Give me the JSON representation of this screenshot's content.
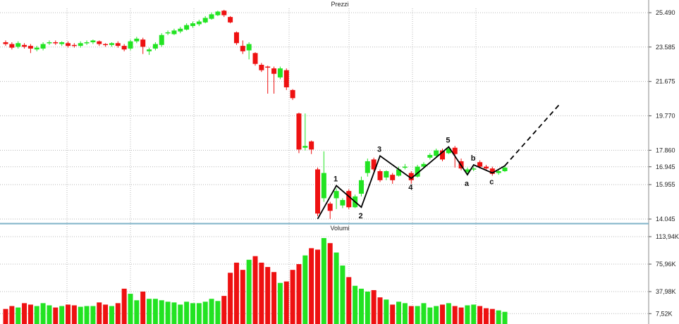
{
  "panels": {
    "price_title": "Prezzi",
    "volume_title": "Volumi"
  },
  "colors": {
    "up": "#22e322",
    "down": "#ee1111",
    "grid": "#b8b8b8",
    "separator": "#7fb3c8",
    "wave": "#000000"
  },
  "chart_data": [
    {
      "type": "candlestick",
      "title": "Prezzi",
      "y_ticks": [
        "25.490",
        "23.585",
        "21.675",
        "19.770",
        "17.860",
        "16.945",
        "15.955",
        "14.045"
      ],
      "y_tick_values": [
        25490,
        23585,
        21675,
        19770,
        17860,
        16945,
        15955,
        14045
      ],
      "ylim": [
        14045,
        25490
      ],
      "candles": [
        [
          23850,
          23750,
          23950,
          23650
        ],
        [
          23750,
          23550,
          23850,
          23450
        ],
        [
          23600,
          23800,
          23900,
          23500
        ],
        [
          23700,
          23600,
          23800,
          23500
        ],
        [
          23650,
          23500,
          23750,
          23250
        ],
        [
          23450,
          23550,
          23650,
          23350
        ],
        [
          23500,
          23750,
          23850,
          23400
        ],
        [
          23800,
          23850,
          23950,
          23700
        ],
        [
          23850,
          23800,
          23950,
          23700
        ],
        [
          23750,
          23850,
          23900,
          23650
        ],
        [
          23800,
          23650,
          23900,
          23550
        ],
        [
          23700,
          23650,
          23800,
          23550
        ],
        [
          23650,
          23800,
          23900,
          23550
        ],
        [
          23800,
          23850,
          23950,
          23700
        ],
        [
          23850,
          23950,
          24000,
          23750
        ],
        [
          23900,
          23750,
          23950,
          23650
        ],
        [
          23750,
          23700,
          23800,
          23600
        ],
        [
          23700,
          23800,
          23850,
          23600
        ],
        [
          23800,
          23650,
          23900,
          23550
        ],
        [
          23650,
          23450,
          23750,
          23350
        ],
        [
          23500,
          23900,
          24000,
          23400
        ],
        [
          23900,
          24050,
          24150,
          23800
        ],
        [
          24000,
          23600,
          24100,
          23200
        ],
        [
          23350,
          23450,
          23550,
          23150
        ],
        [
          23500,
          23750,
          23850,
          23400
        ],
        [
          23700,
          24250,
          24350,
          23600
        ],
        [
          24350,
          24400,
          24500,
          24250
        ],
        [
          24300,
          24500,
          24600,
          24250
        ],
        [
          24450,
          24600,
          24700,
          24350
        ],
        [
          24550,
          24800,
          24900,
          24500
        ],
        [
          24750,
          24900,
          25000,
          24650
        ],
        [
          24850,
          25000,
          25100,
          24750
        ],
        [
          24950,
          25200,
          25300,
          24900
        ],
        [
          25150,
          25400,
          25500,
          25100
        ],
        [
          25350,
          25550,
          25600,
          25300
        ],
        [
          25600,
          25350,
          25650,
          25250
        ],
        [
          25250,
          24950,
          25300,
          24900
        ],
        [
          24400,
          23800,
          24450,
          23700
        ],
        [
          23650,
          23350,
          23950,
          23200
        ],
        [
          23400,
          23750,
          23850,
          22900
        ],
        [
          23250,
          22650,
          23300,
          22550
        ],
        [
          22600,
          22300,
          22700,
          22200
        ],
        [
          22500,
          22450,
          22550,
          21000
        ],
        [
          22400,
          22100,
          22500,
          21000
        ],
        [
          21900,
          22400,
          22500,
          21800
        ],
        [
          22300,
          21350,
          22400,
          21200
        ],
        [
          21200,
          20750,
          21250,
          20650
        ],
        [
          19900,
          17900,
          19950,
          17700
        ],
        [
          18000,
          18100,
          19900,
          17850
        ],
        [
          18350,
          17900,
          18400,
          17650
        ],
        [
          16800,
          14350,
          16900,
          14200
        ],
        [
          15200,
          16600,
          17800,
          15000
        ],
        [
          14900,
          14500,
          15000,
          14050
        ],
        [
          15200,
          15600,
          15750,
          14600
        ],
        [
          14800,
          15100,
          15200,
          14650
        ],
        [
          15600,
          14700,
          15700,
          14600
        ],
        [
          14700,
          15300,
          15400,
          14650
        ],
        [
          15450,
          16200,
          16400,
          15300
        ],
        [
          16600,
          17250,
          17400,
          16400
        ],
        [
          17350,
          16800,
          17450,
          16700
        ],
        [
          16700,
          16200,
          16800,
          16100
        ],
        [
          16350,
          16700,
          16750,
          16200
        ],
        [
          16500,
          16200,
          16600,
          16000
        ],
        [
          16450,
          16800,
          16950,
          16400
        ],
        [
          16900,
          16950,
          17100,
          16800
        ],
        [
          16600,
          16200,
          16700,
          16000
        ],
        [
          16400,
          16950,
          17050,
          16350
        ],
        [
          16950,
          17100,
          17200,
          16850
        ],
        [
          17450,
          17600,
          17700,
          17350
        ],
        [
          17550,
          17850,
          17950,
          17450
        ],
        [
          17850,
          17350,
          17950,
          17250
        ],
        [
          17700,
          17950,
          18050,
          17650
        ],
        [
          18000,
          17650,
          18100,
          16900
        ],
        [
          17250,
          16850,
          17400,
          16750
        ],
        [
          16650,
          16800,
          16900,
          16550
        ],
        [
          16800,
          16850,
          16950,
          16700
        ],
        [
          17200,
          16950,
          17300,
          16850
        ],
        [
          16950,
          16850,
          17050,
          16750
        ],
        [
          16850,
          16550,
          16950,
          16450
        ],
        [
          16600,
          16700,
          16800,
          16500
        ],
        [
          16700,
          16900,
          17000,
          16650
        ]
      ],
      "elliott_waves": {
        "impulse_labels": [
          "1",
          "2",
          "3",
          "4",
          "5"
        ],
        "correction_labels": [
          "a",
          "b",
          "c"
        ],
        "path": [
          [
            50,
            14050
          ],
          [
            53,
            15900
          ],
          [
            57,
            14700
          ],
          [
            60,
            17550
          ],
          [
            65,
            16300
          ],
          [
            71,
            18050
          ],
          [
            74,
            16500
          ],
          [
            75,
            17050
          ],
          [
            78,
            16600
          ],
          [
            80,
            17000
          ]
        ],
        "projection": [
          [
            80,
            17000
          ],
          [
            89,
            20500
          ]
        ]
      }
    },
    {
      "type": "bar",
      "title": "Volumi",
      "y_ticks": [
        "113,94K",
        "75,96K",
        "37,98K",
        "7,52K"
      ],
      "y_tick_values": [
        113940,
        75960,
        37980,
        7520
      ],
      "ylim": [
        0,
        113940
      ],
      "values": [
        14000,
        18000,
        16000,
        22000,
        20000,
        18000,
        22000,
        19000,
        16000,
        18000,
        20000,
        19000,
        17000,
        18000,
        18000,
        23000,
        20000,
        18000,
        22000,
        42000,
        35000,
        26000,
        38000,
        28000,
        28000,
        26000,
        24000,
        23000,
        20000,
        24000,
        22000,
        22000,
        24000,
        28000,
        25000,
        32000,
        64000,
        78000,
        68000,
        82000,
        87000,
        78000,
        72000,
        65000,
        50000,
        52000,
        68000,
        76000,
        88000,
        98000,
        96000,
        112000,
        105000,
        92000,
        74000,
        58000,
        46000,
        42000,
        38000,
        40000,
        30000,
        27000,
        20000,
        24000,
        22000,
        18000,
        18000,
        22000,
        16000,
        18000,
        20000,
        22000,
        18000,
        16000,
        19000,
        20000,
        18000,
        15000,
        14000,
        12000,
        10000
      ]
    }
  ]
}
